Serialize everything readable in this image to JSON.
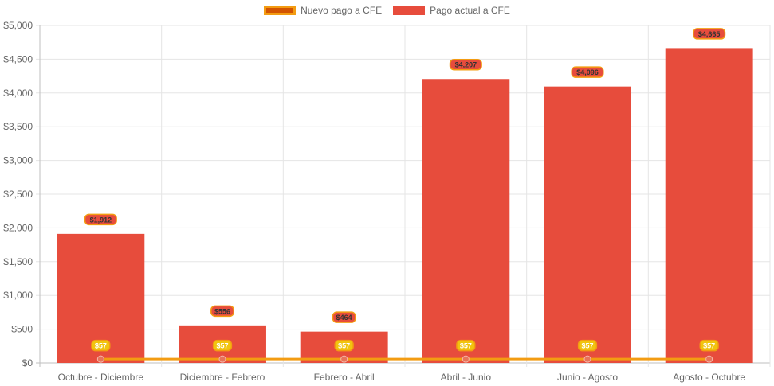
{
  "legend": [
    {
      "label": "Nuevo pago a CFE",
      "fill": "#d35400",
      "border": "#f39c12"
    },
    {
      "label": "Pago actual a CFE",
      "fill": "#e74c3c",
      "border": "#e74c3c"
    }
  ],
  "chart_data": {
    "type": "bar",
    "categories": [
      "Octubre - Diciembre",
      "Diciembre - Febrero",
      "Febrero - Abril",
      "Abril - Junio",
      "Junio - Agosto",
      "Agosto - Octubre"
    ],
    "series": [
      {
        "name": "Nuevo pago a CFE",
        "type": "line",
        "values": [
          57,
          57,
          57,
          57,
          57,
          57
        ],
        "labels": [
          "$57",
          "$57",
          "$57",
          "$57",
          "$57",
          "$57"
        ],
        "color": "#f39c12"
      },
      {
        "name": "Pago actual a CFE",
        "type": "bar",
        "values": [
          1912,
          556,
          464,
          4207,
          4096,
          4665
        ],
        "labels": [
          "$1,912",
          "$556",
          "$464",
          "$4,207",
          "$4,096",
          "$4,665"
        ],
        "color": "#e74c3c"
      }
    ],
    "ylim": [
      0,
      5000
    ],
    "yticks": [
      {
        "value": 0,
        "label": "$0"
      },
      {
        "value": 500,
        "label": "$500"
      },
      {
        "value": 1000,
        "label": "$1,000"
      },
      {
        "value": 1500,
        "label": "$1,500"
      },
      {
        "value": 2000,
        "label": "$2,000"
      },
      {
        "value": 2500,
        "label": "$2,500"
      },
      {
        "value": 3000,
        "label": "$3,000"
      },
      {
        "value": 3500,
        "label": "$3,500"
      },
      {
        "value": 4000,
        "label": "$4,000"
      },
      {
        "value": 4500,
        "label": "$4,500"
      },
      {
        "value": 5000,
        "label": "$5,000"
      }
    ],
    "grid": true,
    "legend_position": "top"
  }
}
